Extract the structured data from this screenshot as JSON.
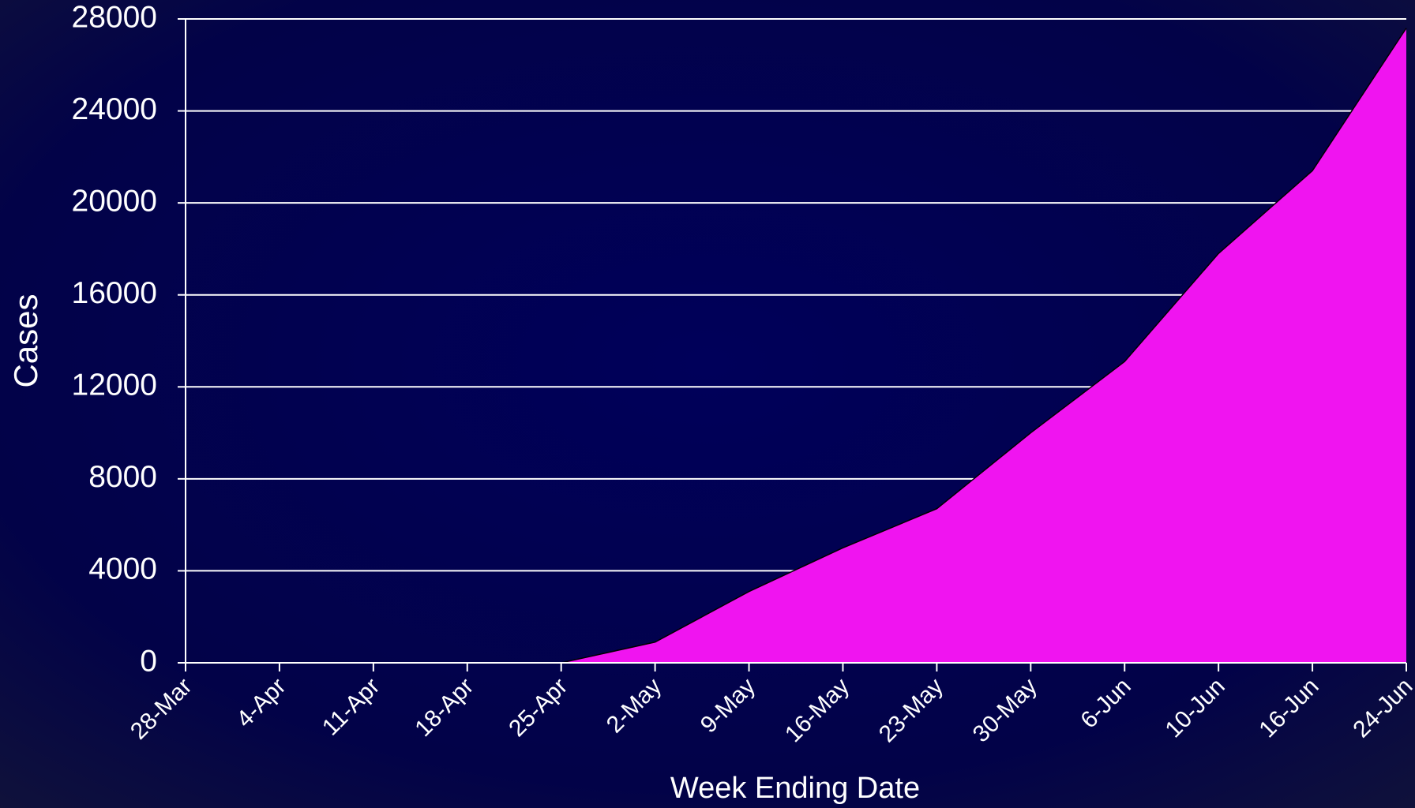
{
  "chart_data": {
    "type": "area",
    "categories": [
      "28-Mar",
      "4-Apr",
      "11-Apr",
      "18-Apr",
      "25-Apr",
      "2-May",
      "9-May",
      "16-May",
      "23-May",
      "30-May",
      "6-Jun",
      "10-Jun",
      "16-Jun",
      "24-Jun"
    ],
    "values": [
      0,
      0,
      0,
      0,
      0,
      900,
      3100,
      5000,
      6700,
      10000,
      13100,
      17800,
      21400,
      27600
    ],
    "color": "#f014f0",
    "ylim": [
      0,
      28000
    ],
    "yticks": [
      0,
      4000,
      8000,
      12000,
      16000,
      20000,
      24000,
      28000
    ],
    "ylabel": "Cases",
    "xlabel": "Week Ending Date",
    "grid": true
  }
}
